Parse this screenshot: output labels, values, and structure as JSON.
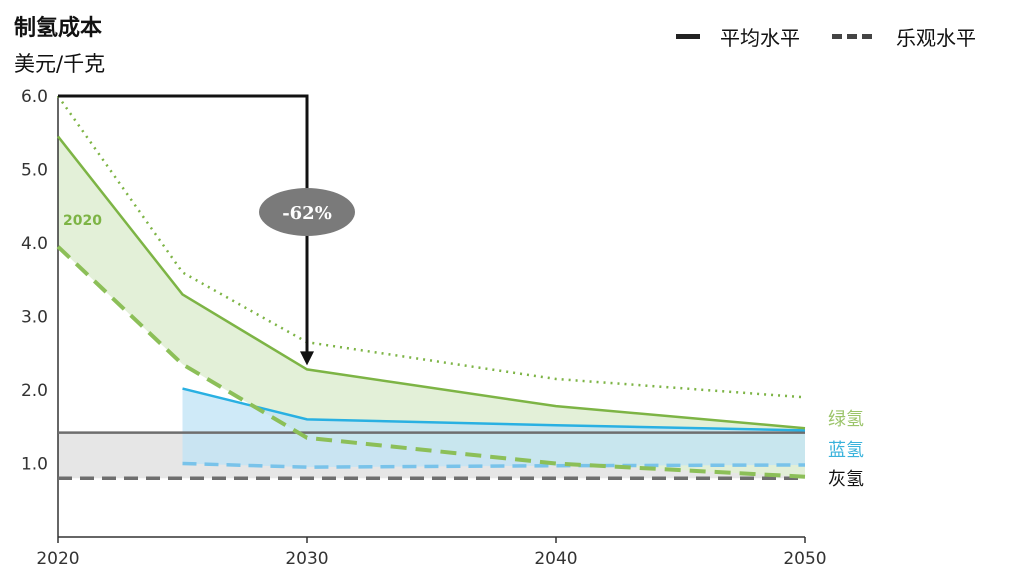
{
  "title": "制氢成本",
  "unit": "美元/千克",
  "legend": {
    "average": "平均水平",
    "optimistic": "乐观水平"
  },
  "annotation": {
    "reduction": "-62%",
    "start_label": "2020"
  },
  "series_labels": {
    "green": "绿氢",
    "blue": "蓝氢",
    "grey": "灰氢"
  },
  "colors": {
    "green": "#7db445",
    "green_fill": "#e2efd6",
    "blue": "#29b0e2",
    "blue_fill": "#bfe3f6",
    "blue_label": "#3ab3dc",
    "green_label": "#9bc46a",
    "grey_line": "#6e6e6e",
    "grey_fill": "#e3e3e3",
    "arrow": "#111111",
    "bubble": "#7a7a7a"
  },
  "chart_data": {
    "type": "line",
    "x_ticks": [
      "2020",
      "2030",
      "2040",
      "2050"
    ],
    "y_ticks": [
      "1.0",
      "2.0",
      "3.0",
      "4.0",
      "5.0",
      "6.0"
    ],
    "xlim": [
      2020,
      2050
    ],
    "ylim": [
      0,
      6
    ],
    "series": [
      {
        "name": "绿氢",
        "style": "average",
        "x": [
          2020,
          2025,
          2030,
          2040,
          2050
        ],
        "y": [
          5.45,
          3.3,
          2.28,
          1.78,
          1.48
        ]
      },
      {
        "name": "绿氢",
        "style": "optimistic",
        "x": [
          2020,
          2025,
          2030,
          2040,
          2050
        ],
        "y": [
          3.95,
          2.35,
          1.35,
          1.0,
          0.82
        ]
      },
      {
        "name": "绿氢",
        "style": "upper-dotted",
        "x": [
          2020,
          2025,
          2030,
          2040,
          2050
        ],
        "y": [
          6.0,
          3.6,
          2.65,
          2.15,
          1.9
        ]
      },
      {
        "name": "蓝氢",
        "style": "average",
        "x": [
          2025,
          2030,
          2040,
          2050
        ],
        "y": [
          2.02,
          1.6,
          1.52,
          1.45
        ]
      },
      {
        "name": "蓝氢",
        "style": "optimistic",
        "x": [
          2025,
          2030,
          2040,
          2050
        ],
        "y": [
          1.0,
          0.95,
          0.97,
          0.98
        ]
      },
      {
        "name": "灰氢",
        "style": "average",
        "x": [
          2020,
          2030,
          2040,
          2050
        ],
        "y": [
          1.42,
          1.42,
          1.42,
          1.42
        ]
      },
      {
        "name": "灰氢",
        "style": "optimistic",
        "x": [
          2020,
          2030,
          2040,
          2050
        ],
        "y": [
          0.8,
          0.8,
          0.8,
          0.8
        ]
      }
    ]
  }
}
